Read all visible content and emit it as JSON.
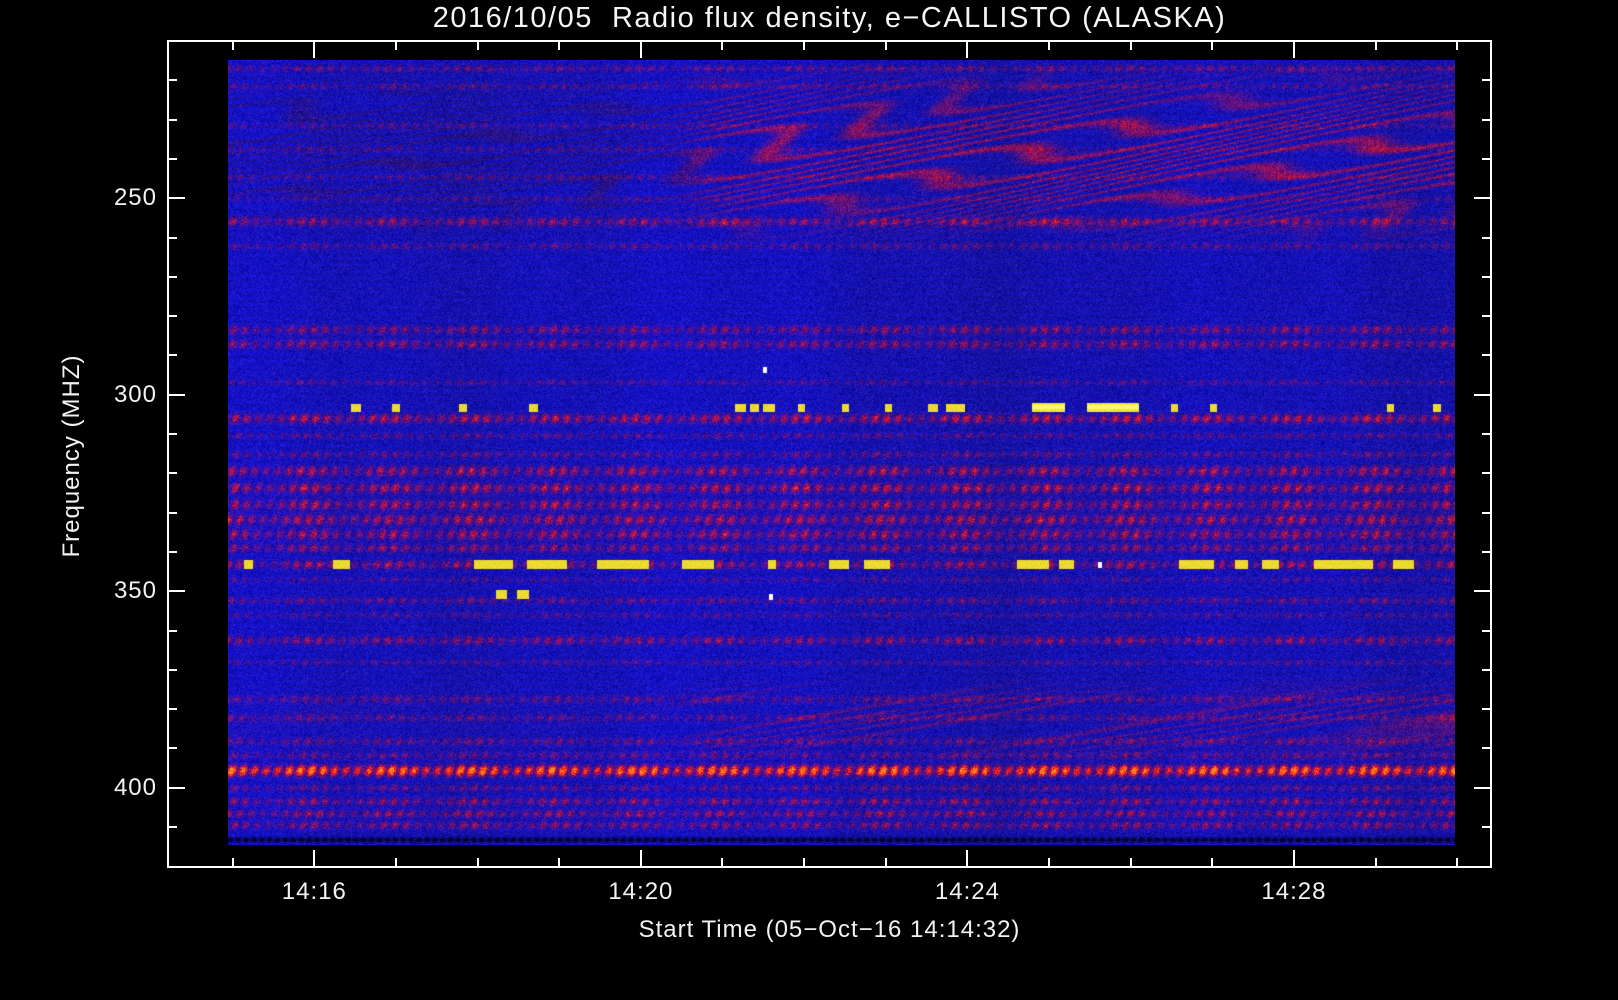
{
  "page": {
    "background": "#000000"
  },
  "chart_data": {
    "type": "heatmap",
    "title": "2016/10/05  Radio flux density, e−CALLISTO (ALASKA)",
    "xlabel": "Start Time (05−Oct−16 14:14:32)",
    "ylabel": "Frequency (MHZ)",
    "x_tick_labels": [
      "14:16",
      "14:20",
      "14:24",
      "14:28"
    ],
    "y_tick_labels": [
      "250",
      "300",
      "350",
      "400"
    ],
    "x_axis": {
      "first_major_frac": 0.11,
      "minor_step_frac": 0.0618,
      "k_min": -1,
      "k_max": 14,
      "majors_every": 4
    },
    "y_axis": {
      "first_major_frac": 0.1896,
      "minor_step_frac": 0.0477,
      "k_min": -3,
      "k_max": 16,
      "majors_every": 5
    },
    "freq_range": [
      215.3,
      414.2
    ],
    "y_axis_direction": "increasing-downward",
    "grid": false,
    "legend": "none",
    "colors": {
      "background": "#000000",
      "frame": "#ffffff",
      "text": "#f2f2f2",
      "base_blue": "#2222d0",
      "band_red": "#cc2200",
      "strong_line_orange": "#ff6a00",
      "burst_yellow": "#e8d020"
    },
    "bands": [
      [
        217.5,
        0.7,
        0.32,
        0.5
      ],
      [
        222.0,
        0.7,
        0.22,
        1.2
      ],
      [
        232.0,
        0.7,
        0.2,
        2.0
      ],
      [
        238.0,
        0.7,
        0.18,
        0.3
      ],
      [
        245.0,
        0.7,
        0.2,
        2.6
      ],
      [
        250.5,
        0.7,
        0.18,
        1.0
      ],
      [
        256.3,
        1.0,
        0.45,
        0.0
      ],
      [
        262.5,
        0.8,
        0.25,
        1.5
      ],
      [
        283.7,
        1.0,
        0.4,
        2.2
      ],
      [
        287.3,
        1.0,
        0.45,
        0.7
      ],
      [
        297.0,
        0.7,
        0.22,
        1.9
      ],
      [
        306.2,
        1.1,
        0.6,
        0.4
      ],
      [
        310.5,
        0.7,
        0.25,
        2.8
      ],
      [
        315.3,
        0.8,
        0.3,
        1.1
      ],
      [
        319.5,
        1.2,
        0.55,
        0.9
      ],
      [
        323.8,
        1.2,
        0.6,
        2.5
      ],
      [
        328.0,
        1.2,
        0.55,
        0.2
      ],
      [
        331.8,
        1.2,
        0.6,
        1.6
      ],
      [
        335.5,
        1.2,
        0.55,
        3.0
      ],
      [
        339.0,
        1.0,
        0.45,
        0.8
      ],
      [
        343.2,
        1.0,
        0.5,
        1.4
      ],
      [
        347.0,
        0.7,
        0.2,
        2.1
      ],
      [
        352.3,
        0.8,
        0.3,
        0.6
      ],
      [
        356.0,
        0.7,
        0.22,
        1.8
      ],
      [
        362.4,
        1.0,
        0.42,
        2.9
      ],
      [
        368.0,
        0.7,
        0.22,
        0.9
      ],
      [
        377.3,
        0.9,
        0.28,
        1.3
      ],
      [
        382.0,
        0.9,
        0.26,
        2.4
      ],
      [
        388.0,
        0.9,
        0.3,
        0.1
      ],
      [
        391.5,
        0.9,
        0.28,
        1.0
      ],
      [
        395.4,
        1.2,
        1.55,
        0.0
      ],
      [
        399.8,
        0.8,
        0.3,
        2.3
      ],
      [
        403.2,
        0.9,
        0.45,
        0.5
      ],
      [
        406.3,
        0.9,
        0.48,
        1.7
      ],
      [
        409.2,
        0.9,
        0.42,
        2.7
      ]
    ],
    "ripples": {
      "top": {
        "f0": 215.5,
        "f1": 263.0,
        "t_strong": 0.385,
        "amp_before": 0.1,
        "amp_after": 0.55
      },
      "bottom": {
        "f0": 371.0,
        "f1": 394.0,
        "t_strong": 0.38,
        "amp_before": 0.04,
        "amp_after": 0.3
      }
    },
    "black_line": {
      "freq": 412.9
    },
    "bursts": [
      [
        303.5,
        0.1,
        0.108,
        1
      ],
      [
        303.5,
        0.133,
        0.14,
        1
      ],
      [
        303.5,
        0.188,
        0.194,
        1
      ],
      [
        303.5,
        0.245,
        0.252,
        1
      ],
      [
        303.5,
        0.413,
        0.422,
        1
      ],
      [
        303.5,
        0.425,
        0.432,
        1
      ],
      [
        303.5,
        0.436,
        0.445,
        1
      ],
      [
        303.5,
        0.464,
        0.47,
        1
      ],
      [
        303.5,
        0.5,
        0.506,
        1
      ],
      [
        303.5,
        0.535,
        0.541,
        1
      ],
      [
        303.5,
        0.57,
        0.578,
        1
      ],
      [
        303.5,
        0.585,
        0.6,
        1
      ],
      [
        303.3,
        0.655,
        0.682,
        2
      ],
      [
        303.3,
        0.7,
        0.742,
        2
      ],
      [
        303.5,
        0.768,
        0.774,
        1
      ],
      [
        303.5,
        0.8,
        0.806,
        1
      ],
      [
        303.5,
        0.944,
        0.95,
        1
      ],
      [
        303.5,
        0.982,
        0.988,
        1
      ],
      [
        343.2,
        0.013,
        0.02,
        1
      ],
      [
        343.2,
        0.085,
        0.099,
        1
      ],
      [
        343.2,
        0.2,
        0.232,
        1
      ],
      [
        343.2,
        0.243,
        0.276,
        1
      ],
      [
        343.2,
        0.3,
        0.343,
        1
      ],
      [
        343.2,
        0.37,
        0.396,
        1
      ],
      [
        343.2,
        0.44,
        0.446,
        1
      ],
      [
        343.2,
        0.489,
        0.506,
        1
      ],
      [
        343.2,
        0.518,
        0.539,
        1
      ],
      [
        343.2,
        0.643,
        0.669,
        1
      ],
      [
        343.2,
        0.677,
        0.689,
        1
      ],
      [
        343.2,
        0.775,
        0.803,
        1
      ],
      [
        343.2,
        0.82,
        0.831,
        1
      ],
      [
        343.2,
        0.842,
        0.856,
        1
      ],
      [
        343.2,
        0.885,
        0.933,
        1
      ],
      [
        343.2,
        0.949,
        0.966,
        1
      ],
      [
        350.8,
        0.218,
        0.227,
        1
      ],
      [
        350.8,
        0.235,
        0.245,
        1
      ]
    ],
    "white_specks": [
      [
        293.8,
        0.437
      ],
      [
        351.3,
        0.442
      ],
      [
        343.2,
        0.71
      ]
    ]
  }
}
